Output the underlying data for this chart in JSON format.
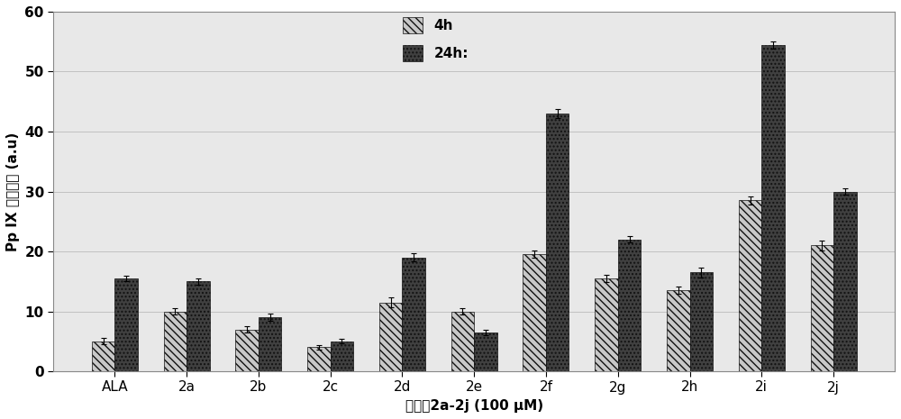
{
  "categories": [
    "ALA",
    "2a",
    "2b",
    "2c",
    "2d",
    "2e",
    "2f",
    "2g",
    "2h",
    "2i",
    "2j"
  ],
  "values_4h": [
    5.0,
    10.0,
    7.0,
    4.0,
    11.5,
    10.0,
    19.5,
    15.5,
    13.5,
    28.5,
    21.0
  ],
  "values_24h": [
    15.5,
    15.0,
    9.0,
    5.0,
    19.0,
    6.5,
    43.0,
    22.0,
    16.5,
    54.5,
    30.0
  ],
  "errors_4h": [
    0.5,
    0.5,
    0.5,
    0.4,
    0.8,
    0.5,
    0.6,
    0.6,
    0.6,
    0.7,
    0.8
  ],
  "errors_24h": [
    0.5,
    0.5,
    0.6,
    0.4,
    0.7,
    0.4,
    0.7,
    0.5,
    0.8,
    0.6,
    0.5
  ],
  "ylabel": "Pp IX 荧光强度 (a.u)",
  "xlabel": "化合物2a-2j (100 μM)",
  "ylim": [
    0,
    60
  ],
  "yticks": [
    0,
    10,
    20,
    30,
    40,
    50,
    60
  ],
  "legend_4h": "4h",
  "legend_24h": "24h:",
  "bar_width": 0.32,
  "hatch_4h": "\\\\\\\\",
  "hatch_24h": "....",
  "color_4h": "#c8c8c8",
  "color_24h": "#404040",
  "edgecolor": "#111111",
  "background_color": "white",
  "plot_bg_color": "#e8e8e8",
  "grid_color": "#bbbbbb",
  "label_fontsize": 11,
  "tick_fontsize": 11,
  "legend_fontsize": 11
}
